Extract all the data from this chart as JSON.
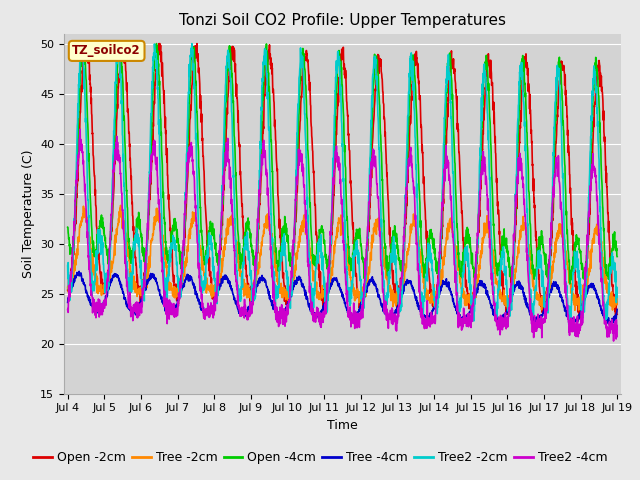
{
  "title": "Tonzi Soil CO2 Profile: Upper Temperatures",
  "ylabel": "Soil Temperature (C)",
  "xlabel": "Time",
  "annotation": "TZ_soilco2",
  "ylim": [
    15,
    51
  ],
  "yticks": [
    15,
    20,
    25,
    30,
    35,
    40,
    45,
    50
  ],
  "days": 15,
  "points_per_day": 144,
  "series": [
    {
      "label": "Open -2cm",
      "color": "#dd0000"
    },
    {
      "label": "Tree -2cm",
      "color": "#ff8800"
    },
    {
      "label": "Open -4cm",
      "color": "#00cc00"
    },
    {
      "label": "Tree -4cm",
      "color": "#0000cc"
    },
    {
      "label": "Tree2 -2cm",
      "color": "#00cccc"
    },
    {
      "label": "Tree2 -4cm",
      "color": "#cc00cc"
    }
  ],
  "xtick_labels": [
    "Jul 4",
    "Jul 5",
    "Jul 6",
    "Jul 7",
    "Jul 8",
    "Jul 9",
    "Jul 10",
    "Jul 11",
    "Jul 12",
    "Jul 13",
    "Jul 14",
    "Jul 15",
    "Jul 16",
    "Jul 17",
    "Jul 18",
    "Jul 19"
  ],
  "bg_color": "#e8e8e8",
  "plot_bg_color": "#d3d3d3",
  "grid_color": "#ffffff",
  "title_fontsize": 11,
  "label_fontsize": 9,
  "tick_fontsize": 8,
  "legend_fontsize": 9,
  "linewidth": 1.2
}
